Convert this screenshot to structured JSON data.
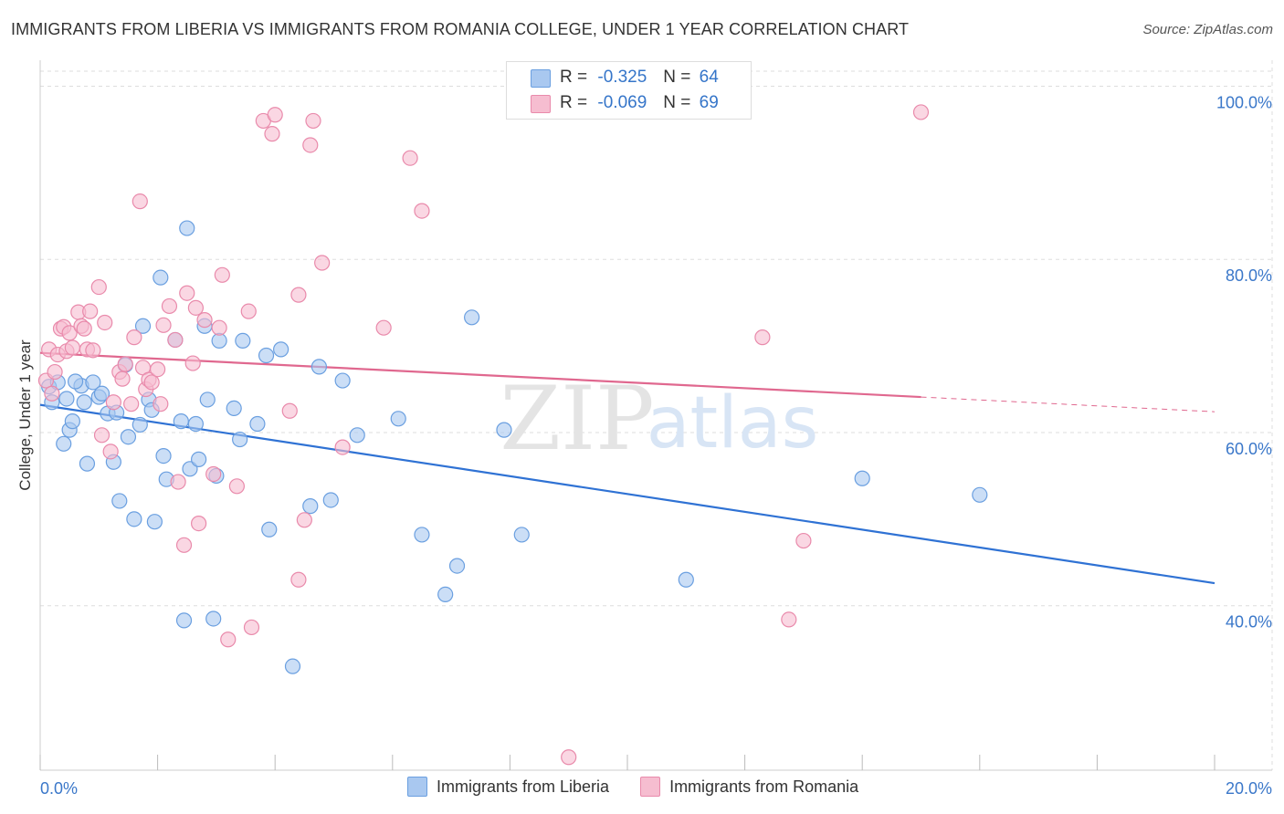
{
  "title": "IMMIGRANTS FROM LIBERIA VS IMMIGRANTS FROM ROMANIA COLLEGE, UNDER 1 YEAR CORRELATION CHART",
  "source": "Source: ZipAtlas.com",
  "watermark": {
    "zip": "ZIP",
    "atlas": "atlas"
  },
  "legend_top": {
    "series1": {
      "r_label": "R =",
      "r_value": "-0.325",
      "n_label": "N =",
      "n_value": "64"
    },
    "series2": {
      "r_label": "R =",
      "r_value": "-0.069",
      "n_label": "N =",
      "n_value": "69"
    }
  },
  "legend_bottom": {
    "series1": "Immigrants from Liberia",
    "series2": "Immigrants from Romania"
  },
  "colors": {
    "blue_fill": "#a9c8f0",
    "blue_stroke": "#6a9fe0",
    "blue_line": "#2f72d4",
    "pink_fill": "#f6bdd0",
    "pink_stroke": "#e98aab",
    "pink_line": "#e0688f",
    "tick_text": "#3a77c9",
    "grid": "#dddddd"
  },
  "chart_data": {
    "type": "scatter",
    "title": "IMMIGRANTS FROM LIBERIA VS IMMIGRANTS FROM ROMANIA COLLEGE, UNDER 1 YEAR CORRELATION CHART",
    "xlabel": "",
    "ylabel": "College, Under 1 year",
    "xlim": [
      0,
      20
    ],
    "ylim": [
      21,
      103
    ],
    "x_tick_labels": [
      {
        "value": 0,
        "label": "0.0%"
      },
      {
        "value": 20,
        "label": "20.0%"
      }
    ],
    "y_ticks": [
      {
        "value": 40,
        "label": "40.0%"
      },
      {
        "value": 60,
        "label": "60.0%"
      },
      {
        "value": 80,
        "label": "80.0%"
      },
      {
        "value": 100,
        "label": "100.0%"
      }
    ],
    "series": [
      {
        "name": "Immigrants from Liberia",
        "points": [
          [
            0.15,
            65.3
          ],
          [
            0.3,
            65.8
          ],
          [
            0.4,
            58.7
          ],
          [
            0.45,
            63.9
          ],
          [
            0.5,
            60.3
          ],
          [
            0.55,
            61.3
          ],
          [
            0.7,
            65.4
          ],
          [
            0.75,
            63.5
          ],
          [
            0.8,
            56.4
          ],
          [
            0.9,
            65.8
          ],
          [
            1.0,
            64.1
          ],
          [
            1.05,
            64.5
          ],
          [
            1.15,
            62.2
          ],
          [
            1.25,
            56.6
          ],
          [
            1.3,
            62.3
          ],
          [
            1.35,
            52.1
          ],
          [
            1.45,
            67.8
          ],
          [
            1.5,
            59.5
          ],
          [
            1.6,
            50.0
          ],
          [
            1.7,
            60.9
          ],
          [
            1.75,
            72.3
          ],
          [
            1.85,
            63.8
          ],
          [
            1.9,
            62.6
          ],
          [
            1.95,
            49.7
          ],
          [
            2.05,
            77.9
          ],
          [
            2.1,
            57.3
          ],
          [
            2.15,
            54.6
          ],
          [
            2.3,
            70.7
          ],
          [
            2.4,
            61.3
          ],
          [
            2.45,
            38.3
          ],
          [
            2.5,
            83.6
          ],
          [
            2.55,
            55.8
          ],
          [
            2.65,
            61.0
          ],
          [
            2.7,
            56.9
          ],
          [
            2.8,
            72.3
          ],
          [
            2.85,
            63.8
          ],
          [
            2.95,
            38.5
          ],
          [
            3.0,
            55.0
          ],
          [
            3.05,
            70.6
          ],
          [
            3.3,
            62.8
          ],
          [
            3.4,
            59.2
          ],
          [
            3.45,
            70.6
          ],
          [
            3.7,
            61.0
          ],
          [
            3.85,
            68.9
          ],
          [
            3.9,
            48.8
          ],
          [
            4.1,
            69.6
          ],
          [
            4.3,
            33.0
          ],
          [
            4.6,
            51.5
          ],
          [
            4.75,
            67.6
          ],
          [
            4.95,
            52.2
          ],
          [
            5.15,
            66.0
          ],
          [
            5.4,
            59.7
          ],
          [
            6.1,
            61.6
          ],
          [
            6.5,
            48.2
          ],
          [
            6.9,
            41.3
          ],
          [
            7.1,
            44.6
          ],
          [
            7.35,
            73.3
          ],
          [
            7.9,
            60.3
          ],
          [
            8.2,
            48.2
          ],
          [
            11.0,
            43.0
          ],
          [
            14.0,
            54.7
          ],
          [
            16.0,
            52.8
          ],
          [
            0.2,
            63.5
          ],
          [
            0.6,
            65.9
          ]
        ]
      },
      {
        "name": "Immigrants from Romania",
        "points": [
          [
            0.1,
            66.0
          ],
          [
            0.15,
            69.6
          ],
          [
            0.2,
            64.5
          ],
          [
            0.25,
            67.0
          ],
          [
            0.3,
            69.0
          ],
          [
            0.35,
            72.0
          ],
          [
            0.4,
            72.2
          ],
          [
            0.45,
            69.4
          ],
          [
            0.5,
            71.5
          ],
          [
            0.55,
            69.8
          ],
          [
            0.65,
            73.9
          ],
          [
            0.7,
            72.3
          ],
          [
            0.75,
            72.0
          ],
          [
            0.8,
            69.6
          ],
          [
            0.85,
            74.0
          ],
          [
            1.0,
            76.8
          ],
          [
            1.05,
            59.7
          ],
          [
            1.1,
            72.7
          ],
          [
            1.2,
            57.8
          ],
          [
            1.25,
            63.5
          ],
          [
            1.35,
            67.0
          ],
          [
            1.4,
            66.2
          ],
          [
            1.45,
            67.9
          ],
          [
            1.55,
            63.3
          ],
          [
            1.6,
            71.0
          ],
          [
            1.7,
            86.7
          ],
          [
            1.75,
            67.5
          ],
          [
            1.8,
            65.0
          ],
          [
            1.85,
            66.1
          ],
          [
            1.9,
            65.8
          ],
          [
            2.0,
            67.3
          ],
          [
            2.05,
            63.3
          ],
          [
            2.1,
            72.4
          ],
          [
            2.2,
            74.6
          ],
          [
            2.3,
            70.7
          ],
          [
            2.35,
            54.3
          ],
          [
            2.45,
            47.0
          ],
          [
            2.5,
            76.1
          ],
          [
            2.6,
            68.0
          ],
          [
            2.65,
            74.4
          ],
          [
            2.7,
            49.5
          ],
          [
            2.8,
            73.0
          ],
          [
            2.95,
            55.2
          ],
          [
            3.05,
            72.1
          ],
          [
            3.1,
            78.2
          ],
          [
            3.2,
            36.1
          ],
          [
            3.35,
            53.8
          ],
          [
            3.55,
            74.0
          ],
          [
            3.6,
            37.5
          ],
          [
            3.8,
            96.0
          ],
          [
            3.95,
            94.5
          ],
          [
            4.0,
            96.7
          ],
          [
            4.25,
            62.5
          ],
          [
            4.4,
            75.9
          ],
          [
            4.4,
            43.0
          ],
          [
            4.5,
            49.9
          ],
          [
            4.6,
            93.2
          ],
          [
            4.65,
            96.0
          ],
          [
            4.8,
            79.6
          ],
          [
            5.15,
            58.3
          ],
          [
            5.85,
            72.1
          ],
          [
            6.3,
            91.7
          ],
          [
            6.5,
            85.6
          ],
          [
            9.0,
            22.5
          ],
          [
            12.3,
            71.0
          ],
          [
            12.75,
            38.4
          ],
          [
            13.0,
            47.5
          ],
          [
            15.0,
            97.0
          ],
          [
            0.9,
            69.5
          ]
        ]
      }
    ],
    "trend_lines": [
      {
        "series": "Immigrants from Liberia",
        "x": [
          0,
          20
        ],
        "y": [
          63.2,
          42.6
        ],
        "style": "solid"
      },
      {
        "series": "Immigrants from Romania",
        "x": [
          0,
          15
        ],
        "y": [
          69.2,
          64.1
        ],
        "style": "solid"
      },
      {
        "series": "Immigrants from Romania",
        "x": [
          15,
          20
        ],
        "y": [
          64.1,
          62.4
        ],
        "style": "dashed"
      }
    ]
  }
}
